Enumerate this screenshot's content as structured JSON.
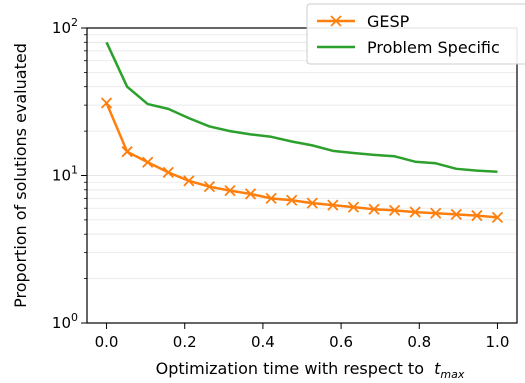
{
  "chart_data": {
    "type": "line",
    "title": "",
    "xlabel": "Optimization time with respect to",
    "xlabel_math": "t",
    "xlabel_math_sub": "max",
    "ylabel": "Proportion of solutions evaluated",
    "xlim": [
      -0.05,
      1.05
    ],
    "ylim": [
      1,
      100
    ],
    "yscale": "log",
    "xticks": [
      "0.0",
      "0.2",
      "0.4",
      "0.6",
      "0.8",
      "1.0"
    ],
    "yticks": [
      {
        "value": 1,
        "base": "10",
        "exp": "0"
      },
      {
        "value": 10,
        "base": "10",
        "exp": "1"
      },
      {
        "value": 100,
        "base": "10",
        "exp": "2"
      }
    ],
    "grid": "horizontal",
    "legend_position": "top-right",
    "series": [
      {
        "name": "GESP",
        "color": "#ff7f0e",
        "marker": "x",
        "x": [
          0.0,
          0.0526,
          0.1053,
          0.1579,
          0.2105,
          0.2632,
          0.3158,
          0.3684,
          0.4211,
          0.4737,
          0.5263,
          0.5789,
          0.6316,
          0.6842,
          0.7368,
          0.7895,
          0.8421,
          0.8947,
          0.9474,
          1.0
        ],
        "y": [
          31.0,
          14.5,
          12.3,
          10.5,
          9.2,
          8.4,
          7.9,
          7.5,
          7.0,
          6.8,
          6.5,
          6.3,
          6.1,
          5.9,
          5.8,
          5.65,
          5.55,
          5.45,
          5.35,
          5.2
        ]
      },
      {
        "name": "Problem Specific",
        "color": "#2ca02c",
        "marker": "",
        "x": [
          0.0,
          0.0526,
          0.1053,
          0.1579,
          0.2105,
          0.2632,
          0.3158,
          0.3684,
          0.4211,
          0.4737,
          0.5263,
          0.5789,
          0.6316,
          0.6842,
          0.7368,
          0.7895,
          0.8421,
          0.8947,
          0.9474,
          1.0
        ],
        "y": [
          80.0,
          40.0,
          30.5,
          28.3,
          24.5,
          21.5,
          20.0,
          19.0,
          18.3,
          17.0,
          16.0,
          14.7,
          14.2,
          13.8,
          13.5,
          12.4,
          12.1,
          11.1,
          10.8,
          10.6
        ]
      }
    ]
  }
}
